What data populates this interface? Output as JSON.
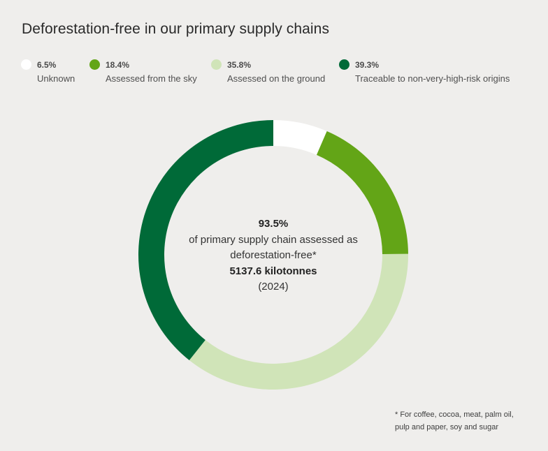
{
  "title": "Deforestation-free in our primary supply chains",
  "chart_data": {
    "type": "pie",
    "title": "Deforestation-free in our primary supply chains",
    "categories": [
      "Unknown",
      "Assessed from the sky",
      "Assessed on the ground",
      "Traceable to non-very-high-risk origins"
    ],
    "values": [
      6.5,
      18.4,
      35.8,
      39.3
    ],
    "value_labels": [
      "6.5%",
      "18.4%",
      "35.8%",
      "39.3%"
    ],
    "colors": [
      "#ffffff",
      "#63a517",
      "#d0e4b8",
      "#006a38"
    ],
    "legend_position": "top"
  },
  "center": {
    "percent": "93.5%",
    "line1": "of primary supply chain assessed as",
    "line2": "deforestation-free*",
    "amount": "5137.6 kilotonnes",
    "year": "(2024)"
  },
  "footnote": {
    "line1": "* For coffee, cocoa, meat, palm oil,",
    "line2": "pulp and paper, soy and sugar"
  }
}
